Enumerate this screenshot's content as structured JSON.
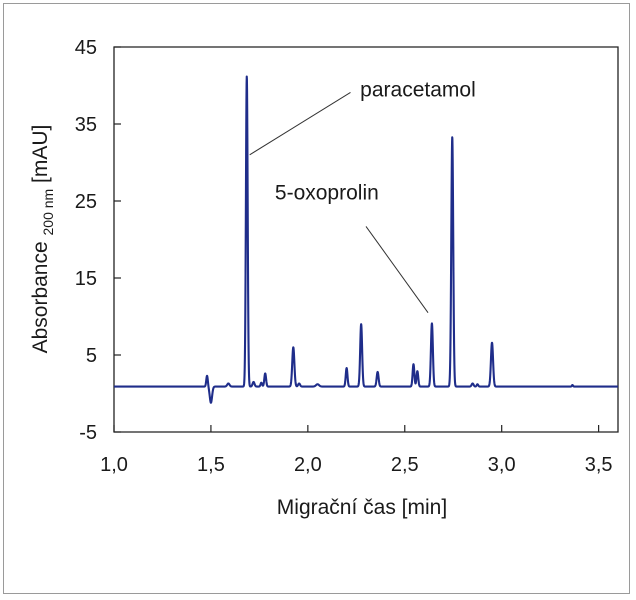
{
  "chart_data": {
    "type": "line",
    "xlabel": "Migrační čas [min]",
    "ylabel": {
      "main": "Absorbance",
      "subscript": "200 nm",
      "unit": "[mAU]"
    },
    "xlim": [
      1.0,
      3.6
    ],
    "ylim": [
      -5,
      45
    ],
    "x_ticks": [
      "1,0",
      "1,5",
      "2,0",
      "2,5",
      "3,0",
      "3,5"
    ],
    "x_tick_values": [
      1.0,
      1.5,
      2.0,
      2.5,
      3.0,
      3.5
    ],
    "y_ticks": [
      "45",
      "35",
      "25",
      "15",
      "5",
      "-5"
    ],
    "y_tick_values": [
      45,
      35,
      25,
      15,
      5,
      -5
    ],
    "grid": false,
    "line_color": "#1f2d8a",
    "baseline": 0.9,
    "series": [
      {
        "peaks": [
          {
            "x": 1.48,
            "y": 2.3,
            "width": 0.004
          },
          {
            "x": 1.5,
            "y": -1.2,
            "width": 0.006
          },
          {
            "x": 1.59,
            "y": 1.3,
            "width": 0.006
          },
          {
            "x": 1.685,
            "y": 41.2,
            "width": 0.0045
          },
          {
            "x": 1.72,
            "y": 1.5,
            "width": 0.005
          },
          {
            "x": 1.76,
            "y": 1.4,
            "width": 0.004
          },
          {
            "x": 1.78,
            "y": 2.6,
            "width": 0.0045
          },
          {
            "x": 1.925,
            "y": 6.0,
            "width": 0.0055
          },
          {
            "x": 1.955,
            "y": 1.3,
            "width": 0.005
          },
          {
            "x": 2.05,
            "y": 1.2,
            "width": 0.008
          },
          {
            "x": 2.2,
            "y": 3.3,
            "width": 0.0045
          },
          {
            "x": 2.275,
            "y": 9.0,
            "width": 0.005
          },
          {
            "x": 2.36,
            "y": 2.8,
            "width": 0.005
          },
          {
            "x": 2.545,
            "y": 3.8,
            "width": 0.0045
          },
          {
            "x": 2.565,
            "y": 2.9,
            "width": 0.0045
          },
          {
            "x": 2.64,
            "y": 9.1,
            "width": 0.005
          },
          {
            "x": 2.745,
            "y": 33.3,
            "width": 0.005
          },
          {
            "x": 2.85,
            "y": 1.3,
            "width": 0.005
          },
          {
            "x": 2.875,
            "y": 1.2,
            "width": 0.004
          },
          {
            "x": 2.95,
            "y": 6.6,
            "width": 0.0055
          },
          {
            "x": 3.365,
            "y": 1.1,
            "width": 0.003
          }
        ]
      }
    ],
    "annotations": [
      {
        "text": "paracetamol",
        "x": 2.27,
        "y": 38.6,
        "points_to": {
          "x": 1.7,
          "y": 31.0
        },
        "line_from": {
          "x": 2.22,
          "y": 39.1
        }
      },
      {
        "text": "5-oxoprolin",
        "x": 1.83,
        "y": 25.2,
        "points_to": {
          "x": 2.62,
          "y": 10.5
        },
        "line_from": {
          "x": 2.3,
          "y": 21.7
        }
      }
    ]
  }
}
